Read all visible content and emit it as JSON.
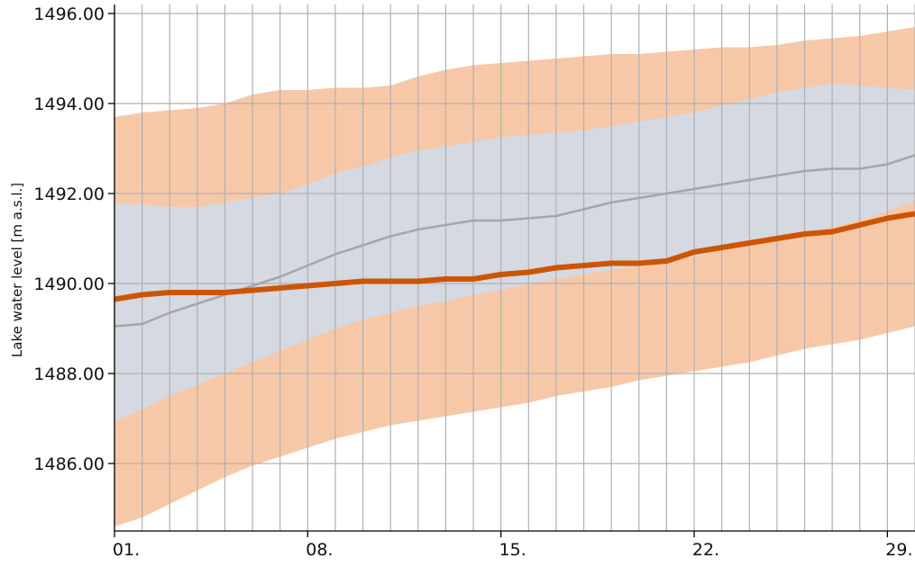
{
  "chart_data": {
    "type": "area",
    "title": "",
    "xlabel": "",
    "ylabel": "Lake water level [m a.s.l.]",
    "x": [
      1,
      2,
      3,
      4,
      5,
      6,
      7,
      8,
      9,
      10,
      11,
      12,
      13,
      14,
      15,
      16,
      17,
      18,
      19,
      20,
      21,
      22,
      23,
      24,
      25,
      26,
      27,
      28,
      29,
      30
    ],
    "xlim": [
      1,
      30
    ],
    "xticks": [
      1,
      8,
      15,
      22,
      29
    ],
    "xtick_labels": [
      "01.",
      "08.",
      "15.",
      "22.",
      "29."
    ],
    "ylim": [
      1484.5,
      1496.2
    ],
    "yticks": [
      1486,
      1488,
      1490,
      1492,
      1494,
      1496
    ],
    "ytick_labels": [
      "1486.00",
      "1488.00",
      "1490.00",
      "1492.00",
      "1494.00",
      "1496.00"
    ],
    "grid": true,
    "colors": {
      "outer_band": "#f7c8a8",
      "inner_band": "#d4d9e2",
      "median_line": "#a6a6a6",
      "forecast_line": "#cc5500",
      "grid": "#b0b0b0",
      "axis": "#000000"
    },
    "series": [
      {
        "role": "outer_band_upper",
        "values": [
          1493.7,
          1493.8,
          1493.85,
          1493.9,
          1494.0,
          1494.2,
          1494.3,
          1494.3,
          1494.35,
          1494.35,
          1494.4,
          1494.6,
          1494.75,
          1494.85,
          1494.9,
          1494.95,
          1495.0,
          1495.05,
          1495.1,
          1495.1,
          1495.15,
          1495.2,
          1495.25,
          1495.25,
          1495.3,
          1495.4,
          1495.45,
          1495.5,
          1495.6,
          1495.7
        ]
      },
      {
        "role": "outer_band_lower",
        "values": [
          1484.6,
          1484.8,
          1485.1,
          1485.4,
          1485.7,
          1485.95,
          1486.15,
          1486.35,
          1486.55,
          1486.7,
          1486.85,
          1486.95,
          1487.05,
          1487.15,
          1487.25,
          1487.35,
          1487.5,
          1487.6,
          1487.7,
          1487.85,
          1487.95,
          1488.05,
          1488.15,
          1488.25,
          1488.4,
          1488.55,
          1488.65,
          1488.75,
          1488.9,
          1489.05
        ]
      },
      {
        "role": "inner_band_upper",
        "values": [
          1491.8,
          1491.75,
          1491.7,
          1491.7,
          1491.8,
          1491.9,
          1492.0,
          1492.2,
          1492.45,
          1492.6,
          1492.8,
          1492.95,
          1493.05,
          1493.15,
          1493.25,
          1493.3,
          1493.35,
          1493.4,
          1493.5,
          1493.6,
          1493.7,
          1493.8,
          1493.95,
          1494.1,
          1494.25,
          1494.35,
          1494.45,
          1494.4,
          1494.35,
          1494.3
        ]
      },
      {
        "role": "inner_band_lower",
        "values": [
          1486.95,
          1487.2,
          1487.5,
          1487.75,
          1488.0,
          1488.25,
          1488.5,
          1488.75,
          1489.0,
          1489.2,
          1489.35,
          1489.5,
          1489.6,
          1489.75,
          1489.85,
          1490.0,
          1490.1,
          1490.2,
          1490.3,
          1490.4,
          1490.5,
          1490.6,
          1490.75,
          1490.85,
          1491.0,
          1491.1,
          1491.25,
          1491.4,
          1491.6,
          1491.85
        ]
      },
      {
        "role": "median_line",
        "values": [
          1489.05,
          1489.1,
          1489.35,
          1489.55,
          1489.75,
          1489.95,
          1490.15,
          1490.4,
          1490.65,
          1490.85,
          1491.05,
          1491.2,
          1491.3,
          1491.4,
          1491.4,
          1491.45,
          1491.5,
          1491.65,
          1491.8,
          1491.9,
          1492.0,
          1492.1,
          1492.2,
          1492.3,
          1492.4,
          1492.5,
          1492.55,
          1492.55,
          1492.65,
          1492.85
        ]
      },
      {
        "role": "forecast_line",
        "values": [
          1489.65,
          1489.75,
          1489.8,
          1489.8,
          1489.8,
          1489.85,
          1489.9,
          1489.95,
          1490.0,
          1490.05,
          1490.05,
          1490.05,
          1490.1,
          1490.1,
          1490.2,
          1490.25,
          1490.35,
          1490.4,
          1490.45,
          1490.45,
          1490.5,
          1490.7,
          1490.8,
          1490.9,
          1491.0,
          1491.1,
          1491.15,
          1491.3,
          1491.45,
          1491.55
        ]
      }
    ]
  }
}
